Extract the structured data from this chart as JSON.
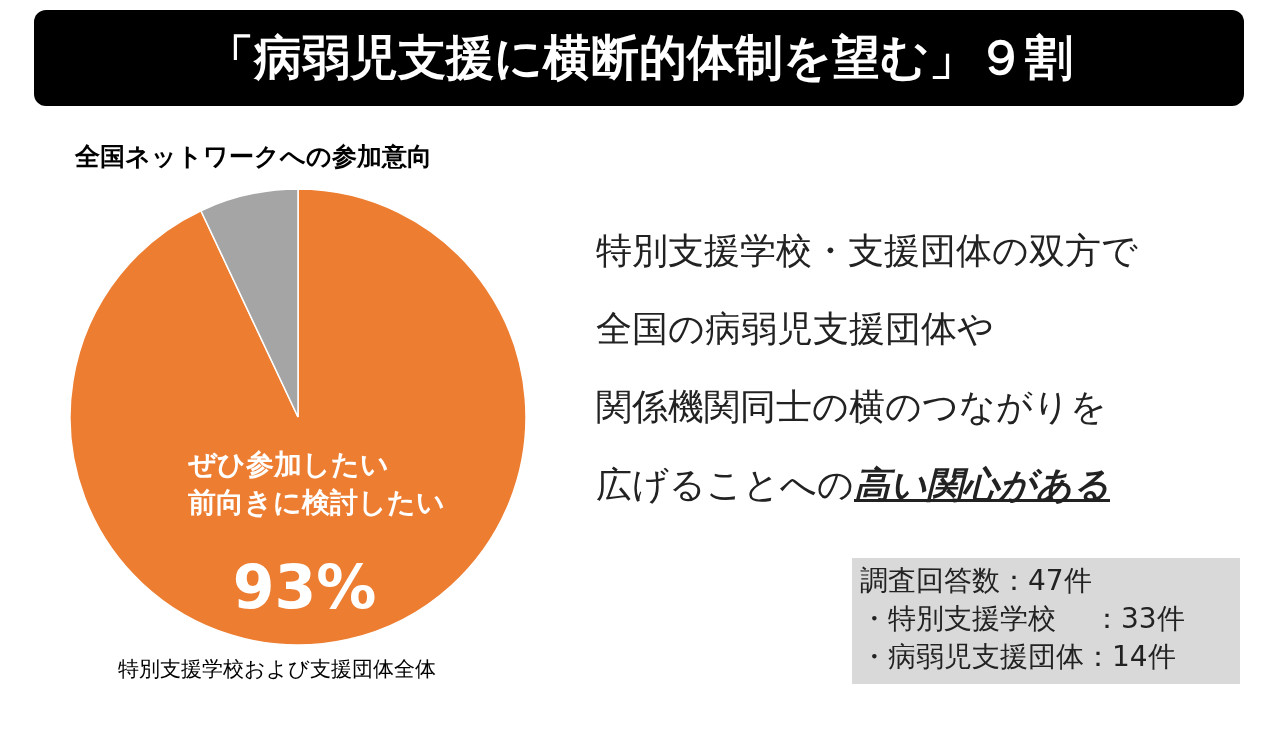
{
  "chart_data": {
    "type": "pie",
    "title": "「病弱児支援に横断的体制を望む」９割",
    "subtitle": "全国ネットワークへの参加意向",
    "categories": [
      "ぜひ参加したい前向きに検討したい",
      null
    ],
    "values": [
      93,
      7
    ],
    "colors": [
      "#ed7d31",
      "#a5a5a5"
    ],
    "value_labels": [
      "93%",
      null
    ],
    "annotations": [
      "特別支援学校および支援団体全体",
      "特別支援学校・支援団体の双方で",
      "全国の病弱児支援団体や",
      "関係機関同士の横のつながりを",
      "広げることへの",
      "高い関心がある",
      "調査回答数：47件",
      "・特別支援学校　 ：33件",
      "・病弱児支援団体：14件"
    ]
  }
}
